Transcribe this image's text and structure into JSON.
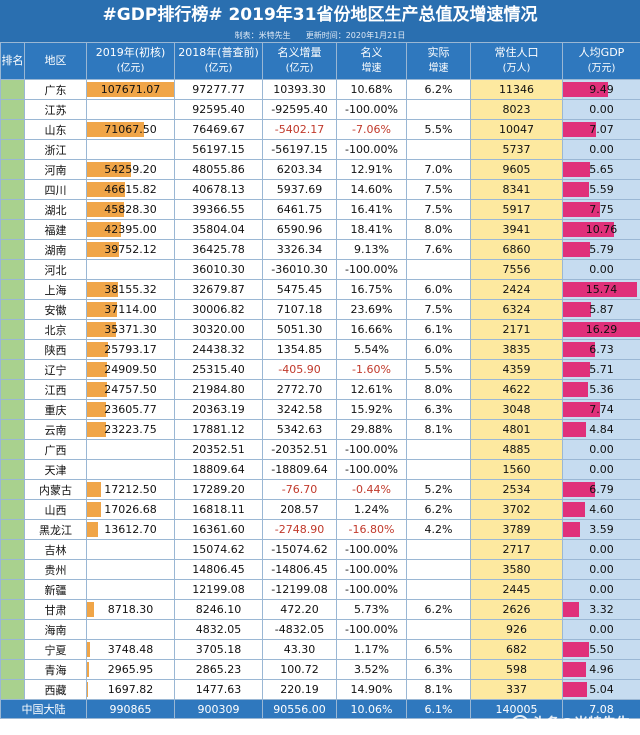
{
  "title": "#GDP排行榜# 2019年31省份地区生产总值及增速情况",
  "subtitle": {
    "maker": "制表：米特先生",
    "update": "更新时间：2020年1月21日"
  },
  "headers": {
    "rank": "排名",
    "region": "地区",
    "gdp2019": "2019年(初核)",
    "gdp2019_unit": "(亿元)",
    "gdp2018": "2018年(普查前)",
    "gdp2018_unit": "(亿元)",
    "inc": "名义增量",
    "inc_unit": "(亿元)",
    "nom": "名义",
    "nom2": "增速",
    "real": "实际",
    "real2": "增速",
    "pop": "常住人口",
    "pop_unit": "(万人)",
    "pc": "人均GDP",
    "pc_unit": "(万元)"
  },
  "colors": {
    "header": "#2f78be",
    "gdp_bar": "#f0a548",
    "pc_bar": "#e0307a",
    "pop_bg": "#fde9a0"
  },
  "rows": [
    {
      "region": "广东",
      "g19": "107671.07",
      "g19v": 107671.07,
      "g18": "97277.77",
      "inc": "10393.30",
      "nom": "10.68%",
      "real": "6.2%",
      "pop": "11346",
      "pc": "9.49",
      "pcv": 9.49,
      "neg": false
    },
    {
      "region": "江苏",
      "g19": "",
      "g19v": 0,
      "g18": "92595.40",
      "inc": "-92595.40",
      "nom": "-100.00%",
      "real": "",
      "pop": "8023",
      "pc": "0.00",
      "pcv": 0,
      "neg": false
    },
    {
      "region": "山东",
      "g19": "71067.50",
      "g19v": 71067.5,
      "g18": "76469.67",
      "inc": "-5402.17",
      "nom": "-7.06%",
      "real": "5.5%",
      "pop": "10047",
      "pc": "7.07",
      "pcv": 7.07,
      "neg": true
    },
    {
      "region": "浙江",
      "g19": "",
      "g19v": 0,
      "g18": "56197.15",
      "inc": "-56197.15",
      "nom": "-100.00%",
      "real": "",
      "pop": "5737",
      "pc": "0.00",
      "pcv": 0,
      "neg": false
    },
    {
      "region": "河南",
      "g19": "54259.20",
      "g19v": 54259.2,
      "g18": "48055.86",
      "inc": "6203.34",
      "nom": "12.91%",
      "real": "7.0%",
      "pop": "9605",
      "pc": "5.65",
      "pcv": 5.65,
      "neg": false
    },
    {
      "region": "四川",
      "g19": "46615.82",
      "g19v": 46615.82,
      "g18": "40678.13",
      "inc": "5937.69",
      "nom": "14.60%",
      "real": "7.5%",
      "pop": "8341",
      "pc": "5.59",
      "pcv": 5.59,
      "neg": false
    },
    {
      "region": "湖北",
      "g19": "45828.30",
      "g19v": 45828.3,
      "g18": "39366.55",
      "inc": "6461.75",
      "nom": "16.41%",
      "real": "7.5%",
      "pop": "5917",
      "pc": "7.75",
      "pcv": 7.75,
      "neg": false
    },
    {
      "region": "福建",
      "g19": "42395.00",
      "g19v": 42395.0,
      "g18": "35804.04",
      "inc": "6590.96",
      "nom": "18.41%",
      "real": "8.0%",
      "pop": "3941",
      "pc": "10.76",
      "pcv": 10.76,
      "neg": false
    },
    {
      "region": "湖南",
      "g19": "39752.12",
      "g19v": 39752.12,
      "g18": "36425.78",
      "inc": "3326.34",
      "nom": "9.13%",
      "real": "7.6%",
      "pop": "6860",
      "pc": "5.79",
      "pcv": 5.79,
      "neg": false
    },
    {
      "region": "河北",
      "g19": "",
      "g19v": 0,
      "g18": "36010.30",
      "inc": "-36010.30",
      "nom": "-100.00%",
      "real": "",
      "pop": "7556",
      "pc": "0.00",
      "pcv": 0,
      "neg": false
    },
    {
      "region": "上海",
      "g19": "38155.32",
      "g19v": 38155.32,
      "g18": "32679.87",
      "inc": "5475.45",
      "nom": "16.75%",
      "real": "6.0%",
      "pop": "2424",
      "pc": "15.74",
      "pcv": 15.74,
      "neg": false
    },
    {
      "region": "安徽",
      "g19": "37114.00",
      "g19v": 37114.0,
      "g18": "30006.82",
      "inc": "7107.18",
      "nom": "23.69%",
      "real": "7.5%",
      "pop": "6324",
      "pc": "5.87",
      "pcv": 5.87,
      "neg": false
    },
    {
      "region": "北京",
      "g19": "35371.30",
      "g19v": 35371.3,
      "g18": "30320.00",
      "inc": "5051.30",
      "nom": "16.66%",
      "real": "6.1%",
      "pop": "2171",
      "pc": "16.29",
      "pcv": 16.29,
      "neg": false
    },
    {
      "region": "陕西",
      "g19": "25793.17",
      "g19v": 25793.17,
      "g18": "24438.32",
      "inc": "1354.85",
      "nom": "5.54%",
      "real": "6.0%",
      "pop": "3835",
      "pc": "6.73",
      "pcv": 6.73,
      "neg": false
    },
    {
      "region": "辽宁",
      "g19": "24909.50",
      "g19v": 24909.5,
      "g18": "25315.40",
      "inc": "-405.90",
      "nom": "-1.60%",
      "real": "5.5%",
      "pop": "4359",
      "pc": "5.71",
      "pcv": 5.71,
      "neg": true
    },
    {
      "region": "江西",
      "g19": "24757.50",
      "g19v": 24757.5,
      "g18": "21984.80",
      "inc": "2772.70",
      "nom": "12.61%",
      "real": "8.0%",
      "pop": "4622",
      "pc": "5.36",
      "pcv": 5.36,
      "neg": false
    },
    {
      "region": "重庆",
      "g19": "23605.77",
      "g19v": 23605.77,
      "g18": "20363.19",
      "inc": "3242.58",
      "nom": "15.92%",
      "real": "6.3%",
      "pop": "3048",
      "pc": "7.74",
      "pcv": 7.74,
      "neg": false
    },
    {
      "region": "云南",
      "g19": "23223.75",
      "g19v": 23223.75,
      "g18": "17881.12",
      "inc": "5342.63",
      "nom": "29.88%",
      "real": "8.1%",
      "pop": "4801",
      "pc": "4.84",
      "pcv": 4.84,
      "neg": false
    },
    {
      "region": "广西",
      "g19": "",
      "g19v": 0,
      "g18": "20352.51",
      "inc": "-20352.51",
      "nom": "-100.00%",
      "real": "",
      "pop": "4885",
      "pc": "0.00",
      "pcv": 0,
      "neg": false
    },
    {
      "region": "天津",
      "g19": "",
      "g19v": 0,
      "g18": "18809.64",
      "inc": "-18809.64",
      "nom": "-100.00%",
      "real": "",
      "pop": "1560",
      "pc": "0.00",
      "pcv": 0,
      "neg": false
    },
    {
      "region": "内蒙古",
      "g19": "17212.50",
      "g19v": 17212.5,
      "g18": "17289.20",
      "inc": "-76.70",
      "nom": "-0.44%",
      "real": "5.2%",
      "pop": "2534",
      "pc": "6.79",
      "pcv": 6.79,
      "neg": true
    },
    {
      "region": "山西",
      "g19": "17026.68",
      "g19v": 17026.68,
      "g18": "16818.11",
      "inc": "208.57",
      "nom": "1.24%",
      "real": "6.2%",
      "pop": "3702",
      "pc": "4.60",
      "pcv": 4.6,
      "neg": false
    },
    {
      "region": "黑龙江",
      "g19": "13612.70",
      "g19v": 13612.7,
      "g18": "16361.60",
      "inc": "-2748.90",
      "nom": "-16.80%",
      "real": "4.2%",
      "pop": "3789",
      "pc": "3.59",
      "pcv": 3.59,
      "neg": true
    },
    {
      "region": "吉林",
      "g19": "",
      "g19v": 0,
      "g18": "15074.62",
      "inc": "-15074.62",
      "nom": "-100.00%",
      "real": "",
      "pop": "2717",
      "pc": "0.00",
      "pcv": 0,
      "neg": false
    },
    {
      "region": "贵州",
      "g19": "",
      "g19v": 0,
      "g18": "14806.45",
      "inc": "-14806.45",
      "nom": "-100.00%",
      "real": "",
      "pop": "3580",
      "pc": "0.00",
      "pcv": 0,
      "neg": false
    },
    {
      "region": "新疆",
      "g19": "",
      "g19v": 0,
      "g18": "12199.08",
      "inc": "-12199.08",
      "nom": "-100.00%",
      "real": "",
      "pop": "2445",
      "pc": "0.00",
      "pcv": 0,
      "neg": false
    },
    {
      "region": "甘肃",
      "g19": "8718.30",
      "g19v": 8718.3,
      "g18": "8246.10",
      "inc": "472.20",
      "nom": "5.73%",
      "real": "6.2%",
      "pop": "2626",
      "pc": "3.32",
      "pcv": 3.32,
      "neg": false
    },
    {
      "region": "海南",
      "g19": "",
      "g19v": 0,
      "g18": "4832.05",
      "inc": "-4832.05",
      "nom": "-100.00%",
      "real": "",
      "pop": "926",
      "pc": "0.00",
      "pcv": 0,
      "neg": false
    },
    {
      "region": "宁夏",
      "g19": "3748.48",
      "g19v": 3748.48,
      "g18": "3705.18",
      "inc": "43.30",
      "nom": "1.17%",
      "real": "6.5%",
      "pop": "682",
      "pc": "5.50",
      "pcv": 5.5,
      "neg": false
    },
    {
      "region": "青海",
      "g19": "2965.95",
      "g19v": 2965.95,
      "g18": "2865.23",
      "inc": "100.72",
      "nom": "3.52%",
      "real": "6.3%",
      "pop": "598",
      "pc": "4.96",
      "pcv": 4.96,
      "neg": false
    },
    {
      "region": "西藏",
      "g19": "1697.82",
      "g19v": 1697.82,
      "g18": "1477.63",
      "inc": "220.19",
      "nom": "14.90%",
      "real": "8.1%",
      "pop": "337",
      "pc": "5.04",
      "pcv": 5.04,
      "neg": false
    }
  ],
  "total": {
    "label": "中国大陆",
    "g19": "990865",
    "g18": "900309",
    "inc": "90556.00",
    "nom": "10.06%",
    "real": "6.1%",
    "pop": "140005",
    "pc": "7.08"
  },
  "watermark": "头条@米特先生"
}
